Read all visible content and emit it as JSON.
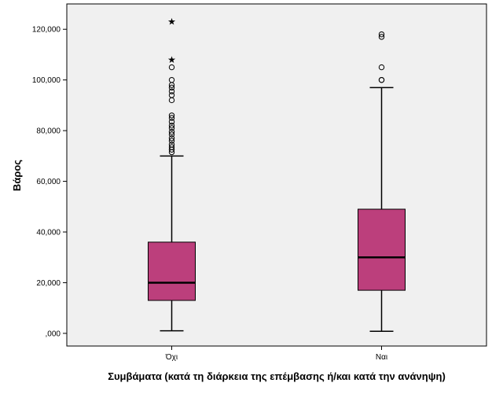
{
  "chart_data": {
    "type": "boxplot",
    "xlabel": "Συμβάματα (κατά τη διάρκεια της επέμβασης ή/και κατά την ανάνηψη)",
    "ylabel": "Βάρος",
    "ylim": [
      -5000,
      130000
    ],
    "y_ticks": [
      0,
      20000,
      40000,
      60000,
      80000,
      100000,
      120000
    ],
    "y_tick_labels": [
      ",000",
      "20,000",
      "40,000",
      "60,000",
      "80,000",
      "100,000",
      "120,000"
    ],
    "grid": false,
    "categories": [
      "Όχι",
      "Ναι"
    ],
    "box_color": "#bc3f7c",
    "plot_background": "#f0f0f0",
    "boxes": [
      {
        "category": "Όχι",
        "whisker_low": 1000,
        "q1": 13000,
        "median": 20000,
        "q3": 36000,
        "whisker_high": 70000,
        "outliers": [
          71500,
          72500,
          73500,
          74500,
          76000,
          77000,
          78500,
          79500,
          81000,
          82000,
          83500,
          85000,
          86000,
          92000,
          94000,
          95500,
          97000,
          98000,
          100000,
          105000
        ],
        "extremes": [
          108000,
          123000
        ]
      },
      {
        "category": "Ναι",
        "whisker_low": 800,
        "q1": 17000,
        "median": 30000,
        "q3": 49000,
        "whisker_high": 97000,
        "outliers": [
          100000,
          100000,
          105000,
          117000,
          118000
        ],
        "extremes": []
      }
    ]
  }
}
